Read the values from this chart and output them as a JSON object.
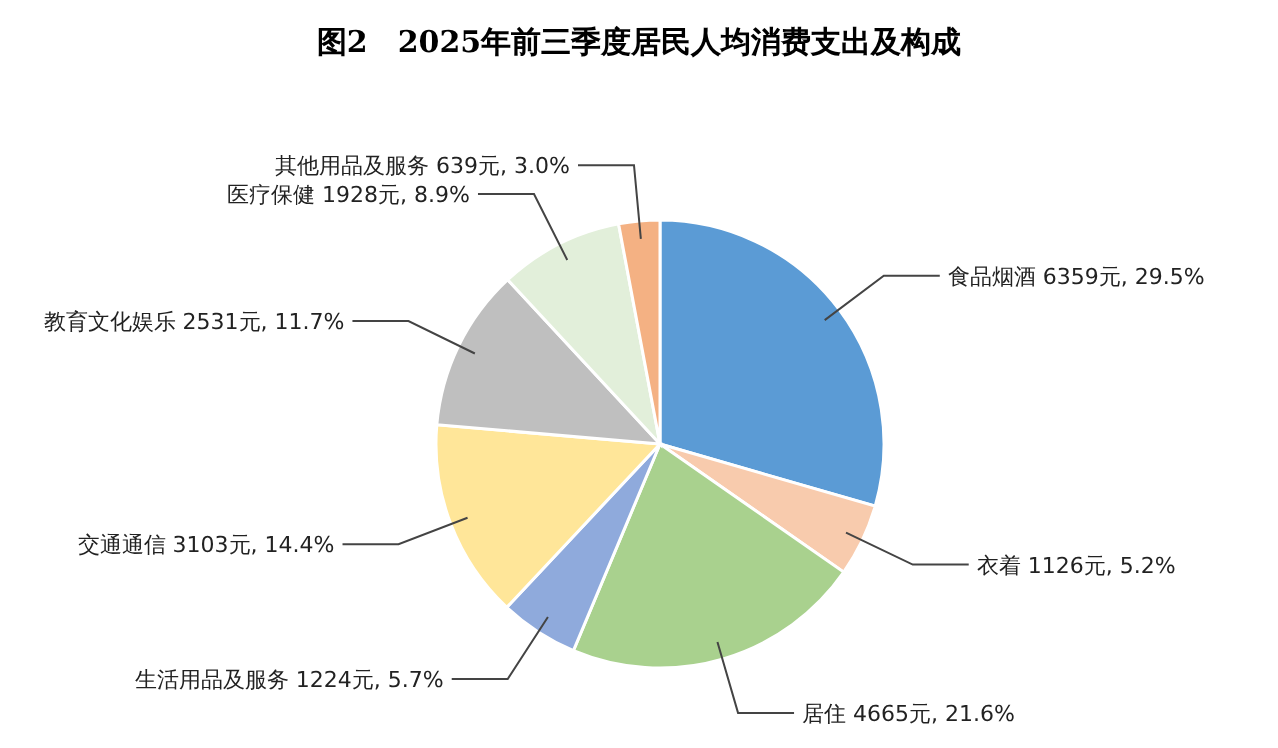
{
  "chart_data": {
    "type": "pie",
    "title": "图2　2025年前三季度居民人均消费支出及构成",
    "categories": [
      "食品烟酒",
      "衣着",
      "居住",
      "生活用品及服务",
      "交通通信",
      "教育文化娱乐",
      "医疗保健",
      "其他用品及服务"
    ],
    "values": [
      6359,
      1126,
      4665,
      1224,
      3103,
      2531,
      1928,
      639
    ],
    "value_labels": [
      "6359元, 29.5%",
      "1126元, 5.2%",
      "4665元, 21.6%",
      "1224元, 5.7%",
      "3103元, 14.4%",
      "2531元, 11.7%",
      "1928元, 8.9%",
      "639元, 3.0%"
    ],
    "colors": [
      "#5b9bd5",
      "#f8cbad",
      "#a9d18e",
      "#8faadc",
      "#ffe699",
      "#bfbfbf",
      "#e2efda",
      "#f4b183"
    ],
    "legend": false
  }
}
